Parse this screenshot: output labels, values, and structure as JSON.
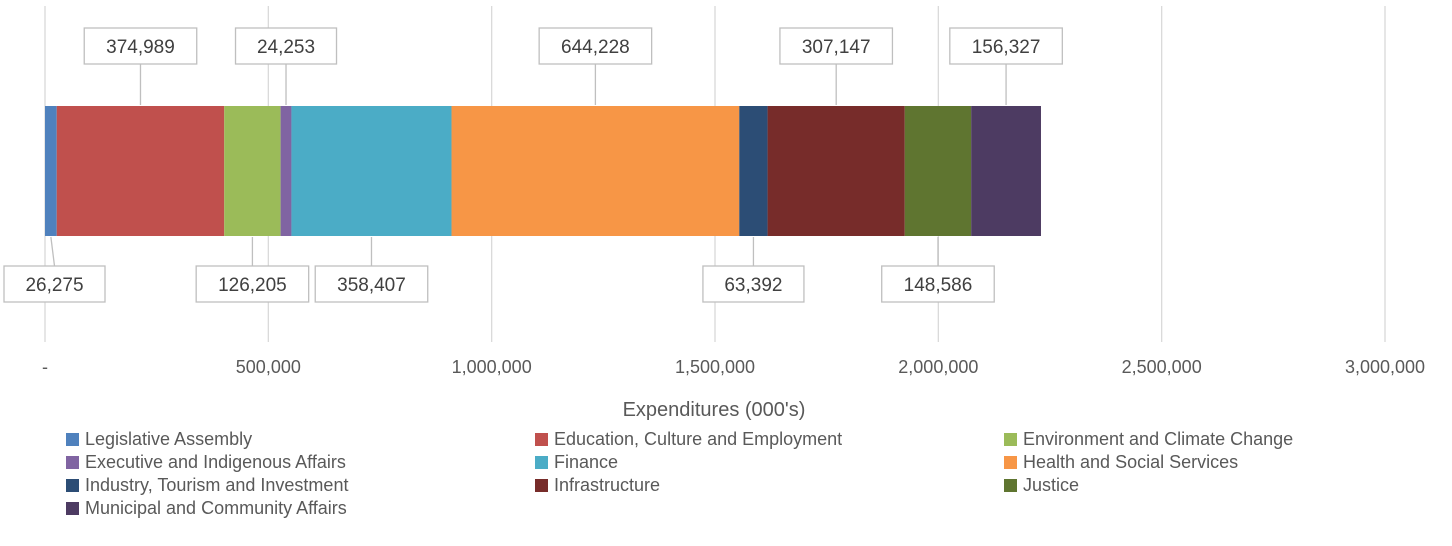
{
  "chart_data": {
    "type": "bar",
    "orientation": "horizontal",
    "stacked": true,
    "xlabel": "Expenditures (000's)",
    "ylabel": "",
    "xlim": [
      0,
      3000000
    ],
    "x_ticks": [
      0,
      500000,
      1000000,
      1500000,
      2000000,
      2500000,
      3000000
    ],
    "x_tick_labels": [
      "-",
      "500,000",
      "1,000,000",
      "1,500,000",
      "2,000,000",
      "2,500,000",
      "3,000,000"
    ],
    "grid": "vertical",
    "legend_position": "bottom",
    "series": [
      {
        "name": "Legislative Assembly",
        "value": 26275,
        "label": "26,275",
        "color": "#4f81bd",
        "callout": "below"
      },
      {
        "name": "Education, Culture and Employment",
        "value": 374989,
        "label": "374,989",
        "color": "#c0504d",
        "callout": "above"
      },
      {
        "name": "Environment and Climate Change",
        "value": 126205,
        "label": "126,205",
        "color": "#9bbb59",
        "callout": "below"
      },
      {
        "name": "Executive and Indigenous Affairs",
        "value": 24253,
        "label": "24,253",
        "color": "#8064a2",
        "callout": "above"
      },
      {
        "name": "Finance",
        "value": 358407,
        "label": "358,407",
        "color": "#4bacc6",
        "callout": "below"
      },
      {
        "name": "Health and Social Services",
        "value": 644228,
        "label": "644,228",
        "color": "#f79646",
        "callout": "above"
      },
      {
        "name": "Industry, Tourism and Investment",
        "value": 63392,
        "label": "63,392",
        "color": "#2c4d75",
        "callout": "below"
      },
      {
        "name": "Infrastructure",
        "value": 307147,
        "label": "307,147",
        "color": "#772c2a",
        "callout": "above"
      },
      {
        "name": "Justice",
        "value": 148586,
        "label": "148,586",
        "color": "#5f7530",
        "callout": "below"
      },
      {
        "name": "Municipal and Community Affairs",
        "value": 156327,
        "label": "156,327",
        "color": "#4d3b62",
        "callout": "above"
      }
    ]
  }
}
